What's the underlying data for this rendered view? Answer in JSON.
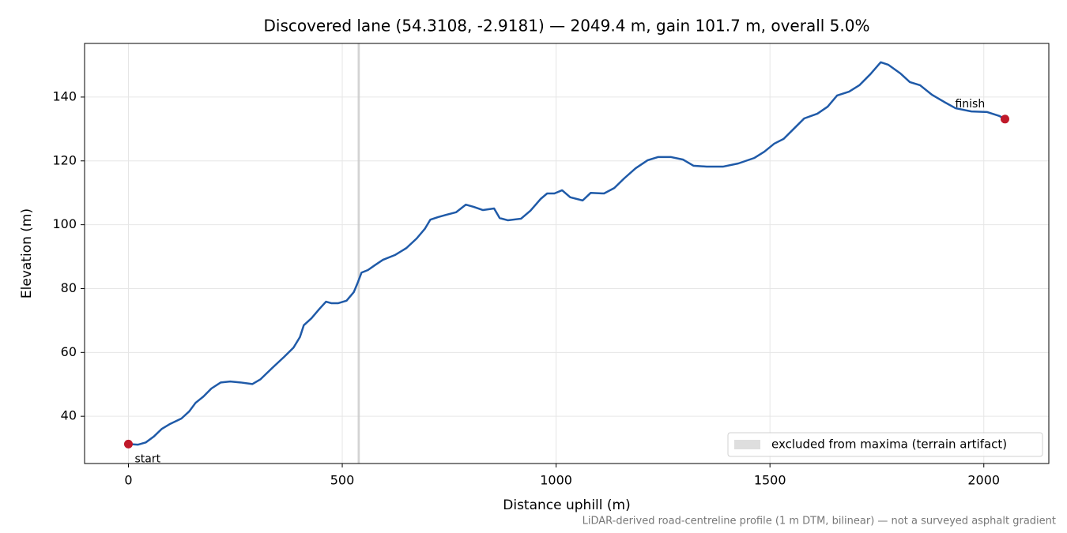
{
  "chart_data": {
    "type": "line",
    "title": "Discovered lane (54.3108, -2.9181) — 2049.4 m, gain 101.7 m, overall 5.0%",
    "x_label": "Distance uphill (m)",
    "y_label": "Elevation (m)",
    "footnote": "LiDAR-derived road-centreline profile (1 m DTM, bilinear) — not a surveyed asphalt gradient",
    "x": [
      0,
      22,
      40.6,
      59,
      77.6,
      96,
      124,
      142,
      157,
      175.5,
      194,
      216,
      238,
      262,
      290,
      309,
      336,
      364,
      386,
      401,
      410,
      428,
      447,
      462,
      475,
      490,
      510,
      527,
      536,
      545,
      560,
      576,
      595,
      623,
      650,
      674,
      693,
      706,
      724,
      743,
      766,
      789,
      807,
      829,
      855,
      868,
      887,
      918,
      940,
      964,
      979,
      996,
      1014,
      1033,
      1062,
      1081,
      1112,
      1136,
      1159,
      1186,
      1214,
      1238,
      1269,
      1297,
      1321,
      1352,
      1390,
      1426,
      1463,
      1487,
      1510,
      1532,
      1556,
      1580,
      1611,
      1635,
      1657,
      1685,
      1709,
      1735,
      1759,
      1777,
      1805,
      1827,
      1851,
      1879,
      1907,
      1934,
      1971,
      2008,
      2036,
      2049.4
    ],
    "series": [
      {
        "color": "#1f5aa8",
        "values": [
          31.3,
          31.1,
          31.8,
          33.6,
          36.0,
          37.5,
          39.3,
          41.5,
          44.2,
          46.2,
          48.7,
          50.6,
          50.9,
          50.6,
          50.1,
          51.6,
          55.1,
          58.6,
          61.5,
          64.8,
          68.5,
          70.7,
          73.7,
          75.9,
          75.4,
          75.4,
          76.2,
          78.9,
          81.8,
          85.0,
          85.8,
          87.3,
          89.0,
          90.5,
          92.7,
          95.7,
          98.7,
          101.6,
          102.4,
          103.1,
          103.9,
          106.3,
          105.6,
          104.6,
          105.1,
          102.1,
          101.4,
          101.9,
          104.4,
          108.1,
          109.8,
          109.8,
          110.8,
          108.6,
          107.6,
          110.0,
          109.8,
          111.5,
          114.5,
          117.7,
          120.2,
          121.2,
          121.2,
          120.4,
          118.5,
          118.2,
          118.2,
          119.2,
          120.9,
          122.9,
          125.4,
          126.9,
          130.1,
          133.3,
          134.8,
          137.0,
          140.5,
          141.7,
          143.7,
          147.2,
          150.9,
          150.1,
          147.4,
          144.7,
          143.7,
          140.7,
          138.5,
          136.5,
          135.5,
          135.3,
          134.1,
          133.1
        ]
      }
    ],
    "excluded_span": {
      "range": [
        536,
        541
      ],
      "label": "excluded from maxima (terrain artifact)",
      "color": "#c8c8c8"
    },
    "annotations": [
      {
        "text": "start",
        "x": 0,
        "y": 31.3
      },
      {
        "text": "finish",
        "x": 2049.4,
        "y": 133.1
      }
    ],
    "marker_color": "#c0192a",
    "xlim": [
      -102.5,
      2152
    ],
    "ylim": [
      25.2,
      156.8
    ],
    "xticks": [
      0,
      500,
      1000,
      1500,
      2000
    ],
    "yticks": [
      40,
      60,
      80,
      100,
      120,
      140
    ],
    "grid": true,
    "legend": "lower right"
  }
}
